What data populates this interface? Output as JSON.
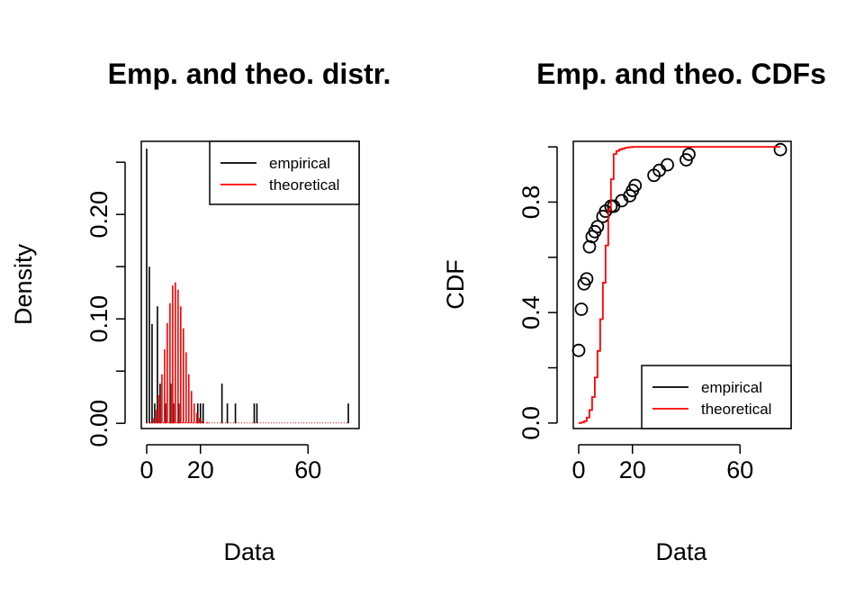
{
  "colors": {
    "empirical": "#000000",
    "theoretical": "#ff0000"
  },
  "chart_data": [
    {
      "type": "bar",
      "title": "Emp. and theo. distr.",
      "xlabel": "Data",
      "ylabel": "Density",
      "xlim": [
        -2,
        79
      ],
      "ylim": [
        -0.005,
        0.27
      ],
      "xticks": [
        0,
        20,
        60
      ],
      "xtick_labels": [
        "0",
        "20",
        "60"
      ],
      "yticks": [
        0.0,
        0.05,
        0.1,
        0.15,
        0.2,
        0.25
      ],
      "ytick_labels": [
        "0.00",
        "",
        "0.10",
        "",
        "0.20",
        ""
      ],
      "grid": false,
      "legend": {
        "position": "top-right",
        "entries": [
          "empirical",
          "theoretical"
        ]
      },
      "series": [
        {
          "name": "empirical",
          "style": "histogram-lines",
          "x": [
            0,
            1,
            2,
            3,
            4,
            5,
            7,
            9,
            10,
            12,
            19,
            20,
            21,
            28,
            30,
            33,
            40,
            41,
            75
          ],
          "values": [
            0.263,
            0.15,
            0.095,
            0.019,
            0.112,
            0.038,
            0.019,
            0.038,
            0.019,
            0.019,
            0.019,
            0.019,
            0.019,
            0.038,
            0.019,
            0.019,
            0.019,
            0.019,
            0.019
          ]
        },
        {
          "name": "theoretical",
          "style": "histogram-lines",
          "x": [
            0,
            1,
            2,
            3,
            4,
            5,
            6,
            7,
            8,
            9,
            10,
            11,
            12,
            13,
            14,
            15,
            16,
            17,
            18,
            19,
            20,
            22,
            25,
            30,
            40,
            50,
            60,
            70,
            75
          ],
          "values": [
            0.0,
            0.001,
            0.005,
            0.013,
            0.027,
            0.047,
            0.071,
            0.096,
            0.115,
            0.132,
            0.135,
            0.128,
            0.112,
            0.091,
            0.068,
            0.047,
            0.031,
            0.019,
            0.01,
            0.005,
            0.002,
            0.001,
            0.0,
            0.0,
            0.0,
            0.0,
            0.0,
            0.0,
            0.0
          ]
        }
      ]
    },
    {
      "type": "line",
      "title": "Emp. and theo. CDFs",
      "xlabel": "Data",
      "ylabel": "CDF",
      "xlim": [
        -2,
        79
      ],
      "ylim": [
        -0.02,
        1.02
      ],
      "xticks": [
        0,
        20,
        60
      ],
      "xtick_labels": [
        "0",
        "20",
        "60"
      ],
      "yticks": [
        0.0,
        0.2,
        0.4,
        0.6,
        0.8,
        1.0
      ],
      "ytick_labels": [
        "0.0",
        "",
        "0.4",
        "",
        "0.8",
        ""
      ],
      "grid": false,
      "legend": {
        "position": "bottom-right",
        "entries": [
          "empirical",
          "theoretical"
        ]
      },
      "series": [
        {
          "name": "empirical",
          "style": "points",
          "x": [
            0,
            1,
            2,
            3,
            4,
            5,
            6,
            7,
            9,
            10,
            12,
            13,
            16,
            19,
            20,
            21,
            28,
            30,
            33,
            40,
            41,
            75
          ],
          "values": [
            0.263,
            0.412,
            0.504,
            0.522,
            0.638,
            0.675,
            0.693,
            0.711,
            0.748,
            0.767,
            0.785,
            0.785,
            0.805,
            0.823,
            0.842,
            0.86,
            0.897,
            0.915,
            0.935,
            0.953,
            0.973,
            0.99
          ]
        },
        {
          "name": "theoretical",
          "style": "step",
          "x": [
            0,
            1,
            2,
            3,
            4,
            5,
            6,
            7,
            8,
            9,
            10,
            11,
            12,
            13,
            14,
            15,
            16,
            17,
            18,
            19,
            20,
            25,
            40,
            60,
            75
          ],
          "values": [
            0.0,
            0.002,
            0.007,
            0.02,
            0.047,
            0.094,
            0.165,
            0.261,
            0.376,
            0.508,
            0.643,
            0.771,
            0.883,
            0.974,
            0.985,
            0.99,
            0.993,
            0.996,
            0.998,
            0.999,
            1.0,
            1.0,
            1.0,
            1.0,
            1.0
          ]
        }
      ]
    }
  ]
}
